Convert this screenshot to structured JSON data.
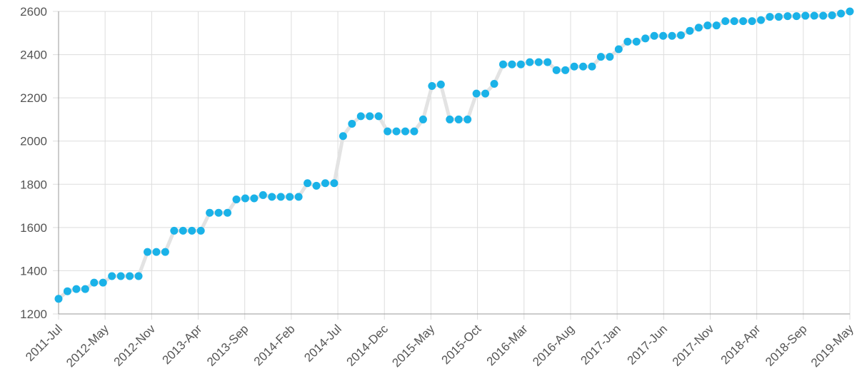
{
  "chart_data": {
    "type": "line",
    "title": "",
    "xlabel": "",
    "ylabel": "",
    "ylim": [
      1200,
      2600
    ],
    "y_ticks": [
      "1200",
      "1400",
      "1600",
      "1800",
      "2000",
      "2200",
      "2400",
      "2600"
    ],
    "x_tick_labels": [
      "2011-Jul",
      "2012-May",
      "2012-Nov",
      "2013-Apr",
      "2013-Sep",
      "2014-Feb",
      "2014-Jul",
      "2014-Dec",
      "2015-May",
      "2015-Oct",
      "2016-Mar",
      "2016-Aug",
      "2017-Jan",
      "2017-Jun",
      "2017-Nov",
      "2018-Apr",
      "2018-Sep",
      "2019-May"
    ],
    "grid": true,
    "legend": "none",
    "colors": {
      "point": "#1ab2e8",
      "line": "#e3e3e3"
    },
    "values": [
      1270,
      1305,
      1315,
      1315,
      1345,
      1345,
      1375,
      1375,
      1375,
      1375,
      1487,
      1487,
      1487,
      1585,
      1585,
      1585,
      1585,
      1668,
      1668,
      1668,
      1730,
      1735,
      1735,
      1750,
      1742,
      1742,
      1742,
      1742,
      1805,
      1793,
      1805,
      1805,
      2023,
      2080,
      2115,
      2115,
      2115,
      2045,
      2045,
      2045,
      2045,
      2100,
      2255,
      2262,
      2100,
      2100,
      2100,
      2220,
      2220,
      2265,
      2355,
      2355,
      2355,
      2365,
      2365,
      2365,
      2328,
      2328,
      2345,
      2345,
      2345,
      2390,
      2390,
      2425,
      2460,
      2460,
      2475,
      2487,
      2487,
      2487,
      2490,
      2510,
      2525,
      2535,
      2535,
      2555,
      2555,
      2555,
      2555,
      2560,
      2575,
      2575,
      2578,
      2578,
      2580,
      2580,
      2580,
      2582,
      2590,
      2600
    ]
  }
}
